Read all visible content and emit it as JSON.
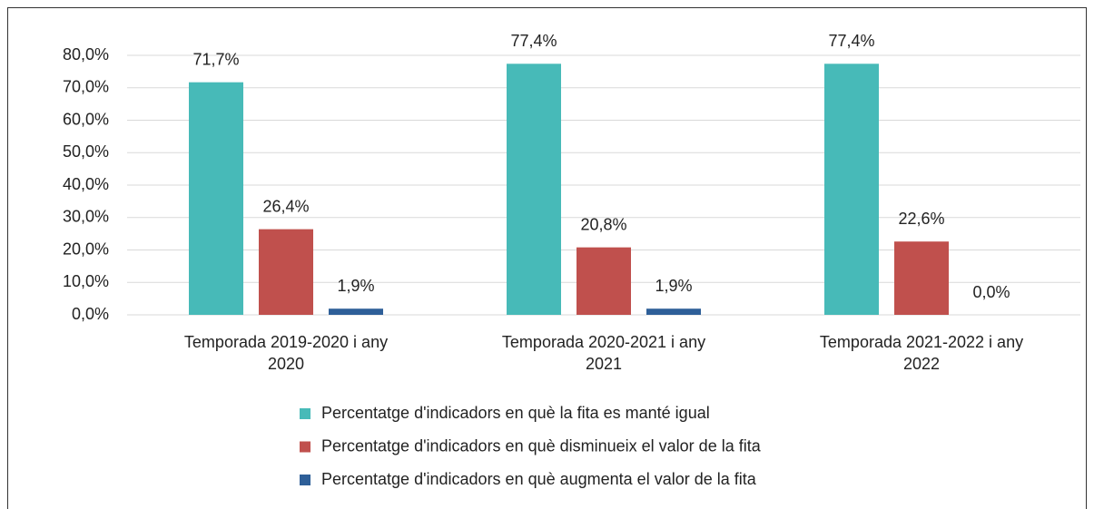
{
  "chart_data": {
    "type": "bar",
    "categories": [
      "Temporada 2019-2020 i any 2020",
      "Temporada 2020-2021 i any 2021",
      "Temporada 2021-2022 i any 2022"
    ],
    "series": [
      {
        "name": "Percentatge d'indicadors en què la fita es manté igual",
        "color": "#47bab8",
        "values": [
          71.7,
          77.4,
          77.4
        ],
        "value_labels": [
          "71,7%",
          "77,4%",
          "77,4%"
        ]
      },
      {
        "name": "Percentatge d'indicadors en què disminueix el valor de la fita",
        "color": "#c0504d",
        "values": [
          26.4,
          20.8,
          22.6
        ],
        "value_labels": [
          "26,4%",
          "20,8%",
          "22,6%"
        ]
      },
      {
        "name": "Percentatge d'indicadors en què augmenta el valor de la fita",
        "color": "#2e5f98",
        "values": [
          1.9,
          1.9,
          0
        ],
        "value_labels": [
          "1,9%",
          "1,9%",
          "0,0%"
        ]
      }
    ],
    "ylim": [
      0,
      80
    ],
    "yticks": [
      {
        "value": 0,
        "label": "0,0%"
      },
      {
        "value": 10,
        "label": "10,0%"
      },
      {
        "value": 20,
        "label": "20,0%"
      },
      {
        "value": 30,
        "label": "30,0%"
      },
      {
        "value": 40,
        "label": "40,0%"
      },
      {
        "value": 50,
        "label": "50,0%"
      },
      {
        "value": 60,
        "label": "60,0%"
      },
      {
        "value": 70,
        "label": "70,0%"
      },
      {
        "value": 80,
        "label": "80,0%"
      }
    ],
    "grid": true,
    "legend": "bottom"
  }
}
